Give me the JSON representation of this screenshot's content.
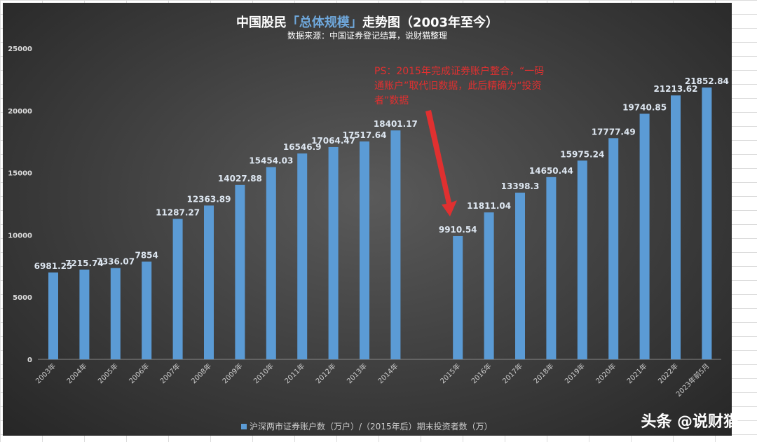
{
  "chart_data": {
    "type": "bar",
    "title_parts": [
      "中国股民",
      "「总体规模」",
      "走势图（2003年至今）"
    ],
    "subtitle": "数据来源：中国证券登记结算，说财猫整理",
    "categories": [
      "2003年",
      "2004年",
      "2005年",
      "2006年",
      "2007年",
      "2008年",
      "2009年",
      "2010年",
      "2011年",
      "2012年",
      "2013年",
      "2014年",
      "",
      "2015年",
      "2016年",
      "2017年",
      "2018年",
      "2019年",
      "2020年",
      "2021年",
      "2022年",
      "2023年前5月"
    ],
    "series": [
      {
        "name": "沪深两市证券账户数（万户）/（2015年后）期末投资者数（万）",
        "values": [
          6981.25,
          7215.74,
          7336.07,
          7854,
          11287.27,
          12363.89,
          14027.88,
          15454.03,
          16546.9,
          17064.47,
          17517.64,
          18401.17,
          null,
          9910.54,
          11811.04,
          13398.3,
          14650.44,
          15975.24,
          17777.49,
          19740.85,
          21213.62,
          21852.84
        ],
        "labels": [
          "6981.25",
          "7215.74",
          "7336.07",
          "7854",
          "11287.27",
          "12363.89",
          "14027.88",
          "15454.03",
          "16546.9",
          "17064.47",
          "17517.64",
          "18401.17",
          "",
          "9910.54",
          "11811.04",
          "13398.3",
          "14650.44",
          "15975.24",
          "17777.49",
          "19740.85",
          "21213.62",
          "21852.84"
        ],
        "color": "#5b9bd5"
      }
    ],
    "ylim": [
      0,
      25000
    ],
    "yticks": [
      "0",
      "5000",
      "10000",
      "15000",
      "20000",
      "25000"
    ],
    "grid": false,
    "legend": "bottom",
    "annotation": "PS：2015年完成证券账户整合，“一码通账户”取代旧数据，此后精确为“投资者”数据",
    "annotation_color": "#e03030"
  },
  "watermark": "头条 @说财猫"
}
